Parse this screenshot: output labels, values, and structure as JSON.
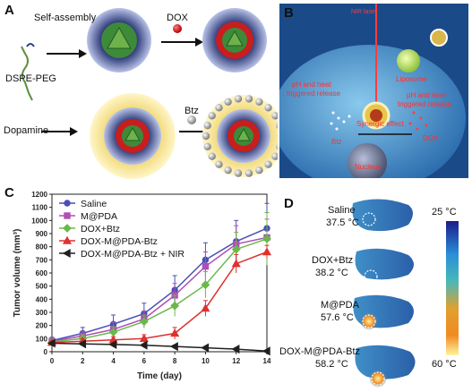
{
  "panels": {
    "a": {
      "label": "A",
      "self_assembly": "Self-assembly",
      "dspe_peg": "DSPE-PEG",
      "dox": "DOX",
      "dopamine": "Dopamine",
      "btz": "Btz"
    },
    "b": {
      "label": "B",
      "nir_laser": "NIR laser",
      "liposome": "Liposome",
      "ph_heat_line1": "pH and heat",
      "ph_heat_line2": "triggered release",
      "ph_laser_line1": "pH and laser",
      "ph_laser_line2": "triggered release",
      "synergic": "Synergic effect",
      "btz": "Btz",
      "dox": "DOX",
      "nucleus": "Nucleus"
    },
    "c": {
      "label": "C"
    },
    "d": {
      "label": "D",
      "entries": [
        {
          "name": "Saline",
          "temp": "37.5 °C"
        },
        {
          "name": "DOX+Btz",
          "temp": "38.2 °C"
        },
        {
          "name": "M@PDA",
          "temp": "57.6 °C"
        },
        {
          "name": "DOX-M@PDA-Btz",
          "temp": "58.2 °C"
        }
      ],
      "scale_max": "25 °C",
      "scale_min": "60 °C"
    }
  },
  "chart_data": {
    "type": "line",
    "xlabel": "Time (day)",
    "ylabel": "Tumor volume (mm³)",
    "xlim": [
      0,
      14
    ],
    "ylim": [
      0,
      1200
    ],
    "xticks": [
      0,
      2,
      4,
      6,
      8,
      10,
      12,
      14
    ],
    "yticks": [
      0,
      100,
      200,
      300,
      400,
      500,
      600,
      700,
      800,
      900,
      1000,
      1100,
      1200
    ],
    "x": [
      0,
      2,
      4,
      6,
      8,
      10,
      12,
      14
    ],
    "legend_position": "top-left",
    "series": [
      {
        "name": "Saline",
        "color": "#4a4fb5",
        "marker": "circle",
        "values": [
          85,
          140,
          210,
          290,
          470,
          700,
          840,
          940
        ],
        "errors": [
          25,
          45,
          70,
          80,
          110,
          130,
          160,
          190
        ]
      },
      {
        "name": "M@PDA",
        "color": "#b04fb5",
        "marker": "square",
        "values": [
          80,
          120,
          170,
          250,
          430,
          650,
          820,
          870
        ],
        "errors": [
          20,
          35,
          55,
          60,
          90,
          110,
          140,
          140
        ]
      },
      {
        "name": "DOX+Btz",
        "color": "#6ab84a",
        "marker": "diamond",
        "values": [
          75,
          100,
          150,
          230,
          350,
          510,
          780,
          860
        ],
        "errors": [
          20,
          30,
          40,
          50,
          80,
          100,
          130,
          200
        ]
      },
      {
        "name": "DOX-M@PDA-Btz",
        "color": "#e03030",
        "marker": "triangle",
        "values": [
          70,
          80,
          90,
          100,
          140,
          330,
          670,
          760
        ],
        "errors": [
          15,
          20,
          25,
          30,
          45,
          60,
          70,
          50
        ]
      },
      {
        "name": "DOX-M@PDA-Btz + NIR",
        "color": "#202020",
        "marker": "triangle-left",
        "values": [
          65,
          60,
          55,
          50,
          40,
          30,
          20,
          5
        ],
        "errors": [
          10,
          10,
          10,
          10,
          10,
          8,
          8,
          5
        ]
      }
    ]
  }
}
